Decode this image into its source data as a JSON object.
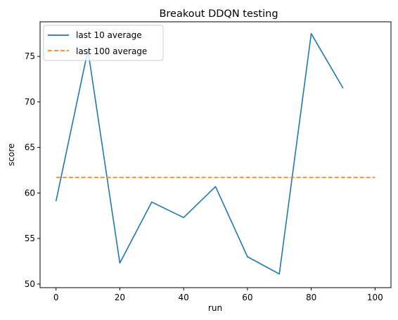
{
  "chart_data": {
    "type": "line",
    "title": "Breakout DDQN testing",
    "xlabel": "run",
    "ylabel": "score",
    "xlim": [
      -5,
      105
    ],
    "ylim": [
      49.6,
      78.8
    ],
    "xticks": [
      0,
      20,
      40,
      60,
      80,
      100
    ],
    "yticks": [
      50,
      55,
      60,
      65,
      70,
      75
    ],
    "grid": false,
    "legend_position": "top-left",
    "series": [
      {
        "name": "last 10 average",
        "style": "solid",
        "color": "#1f77b4",
        "x": [
          0,
          10,
          20,
          30,
          40,
          50,
          60,
          70,
          80,
          90
        ],
        "y": [
          59.1,
          75.7,
          52.3,
          59.0,
          57.3,
          60.7,
          53.0,
          51.1,
          77.5,
          71.5
        ]
      },
      {
        "name": "last 100 average",
        "style": "dashed",
        "color": "#ff7f0e",
        "x": [
          0,
          100
        ],
        "y": [
          61.7,
          61.7
        ]
      }
    ]
  }
}
